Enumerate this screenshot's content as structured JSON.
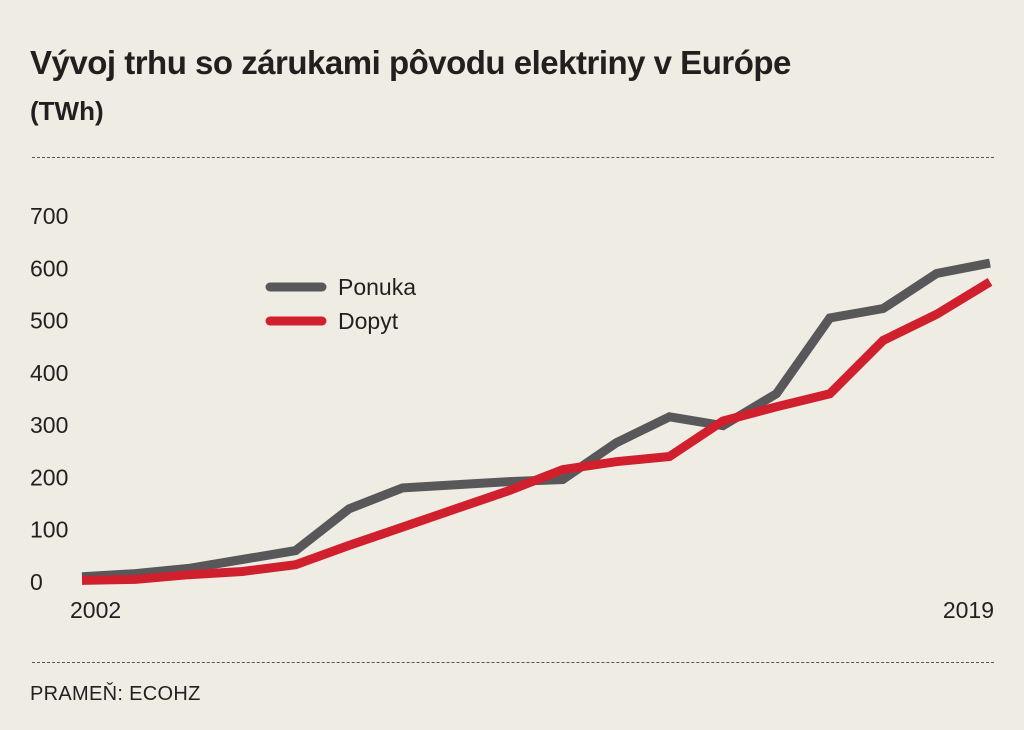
{
  "header": {
    "title": "Vývoj trhu so zárukami pôvodu elektriny v Európe",
    "unit": "(TWh)"
  },
  "footer": {
    "source": "PRAMEŇ: ECOHZ"
  },
  "chart_data": {
    "type": "line",
    "title": "Vývoj trhu so zárukami pôvodu elektriny v Európe",
    "subtitle": "(TWh)",
    "xlabel": "",
    "ylabel": "",
    "x": [
      2002,
      2003,
      2004,
      2005,
      2006,
      2007,
      2008,
      2009,
      2010,
      2011,
      2012,
      2013,
      2014,
      2015,
      2016,
      2017,
      2018,
      2019
    ],
    "x_tick_labels": [
      "2002",
      "2019"
    ],
    "y_ticks": [
      0,
      100,
      200,
      300,
      400,
      500,
      600,
      700
    ],
    "ylim": [
      0,
      700
    ],
    "grid": false,
    "legend_position": "upper-left",
    "series": [
      {
        "name": "Ponuka",
        "color": "#58585a",
        "values": [
          10,
          16,
          26,
          43,
          60,
          140,
          180,
          186,
          192,
          196,
          266,
          316,
          299,
          360,
          505,
          523,
          590,
          610
        ]
      },
      {
        "name": "Dopyt",
        "color": "#d0202e",
        "values": [
          3,
          5,
          14,
          20,
          33,
          70,
          105,
          140,
          175,
          215,
          230,
          240,
          308,
          335,
          360,
          462,
          512,
          574
        ]
      }
    ]
  }
}
